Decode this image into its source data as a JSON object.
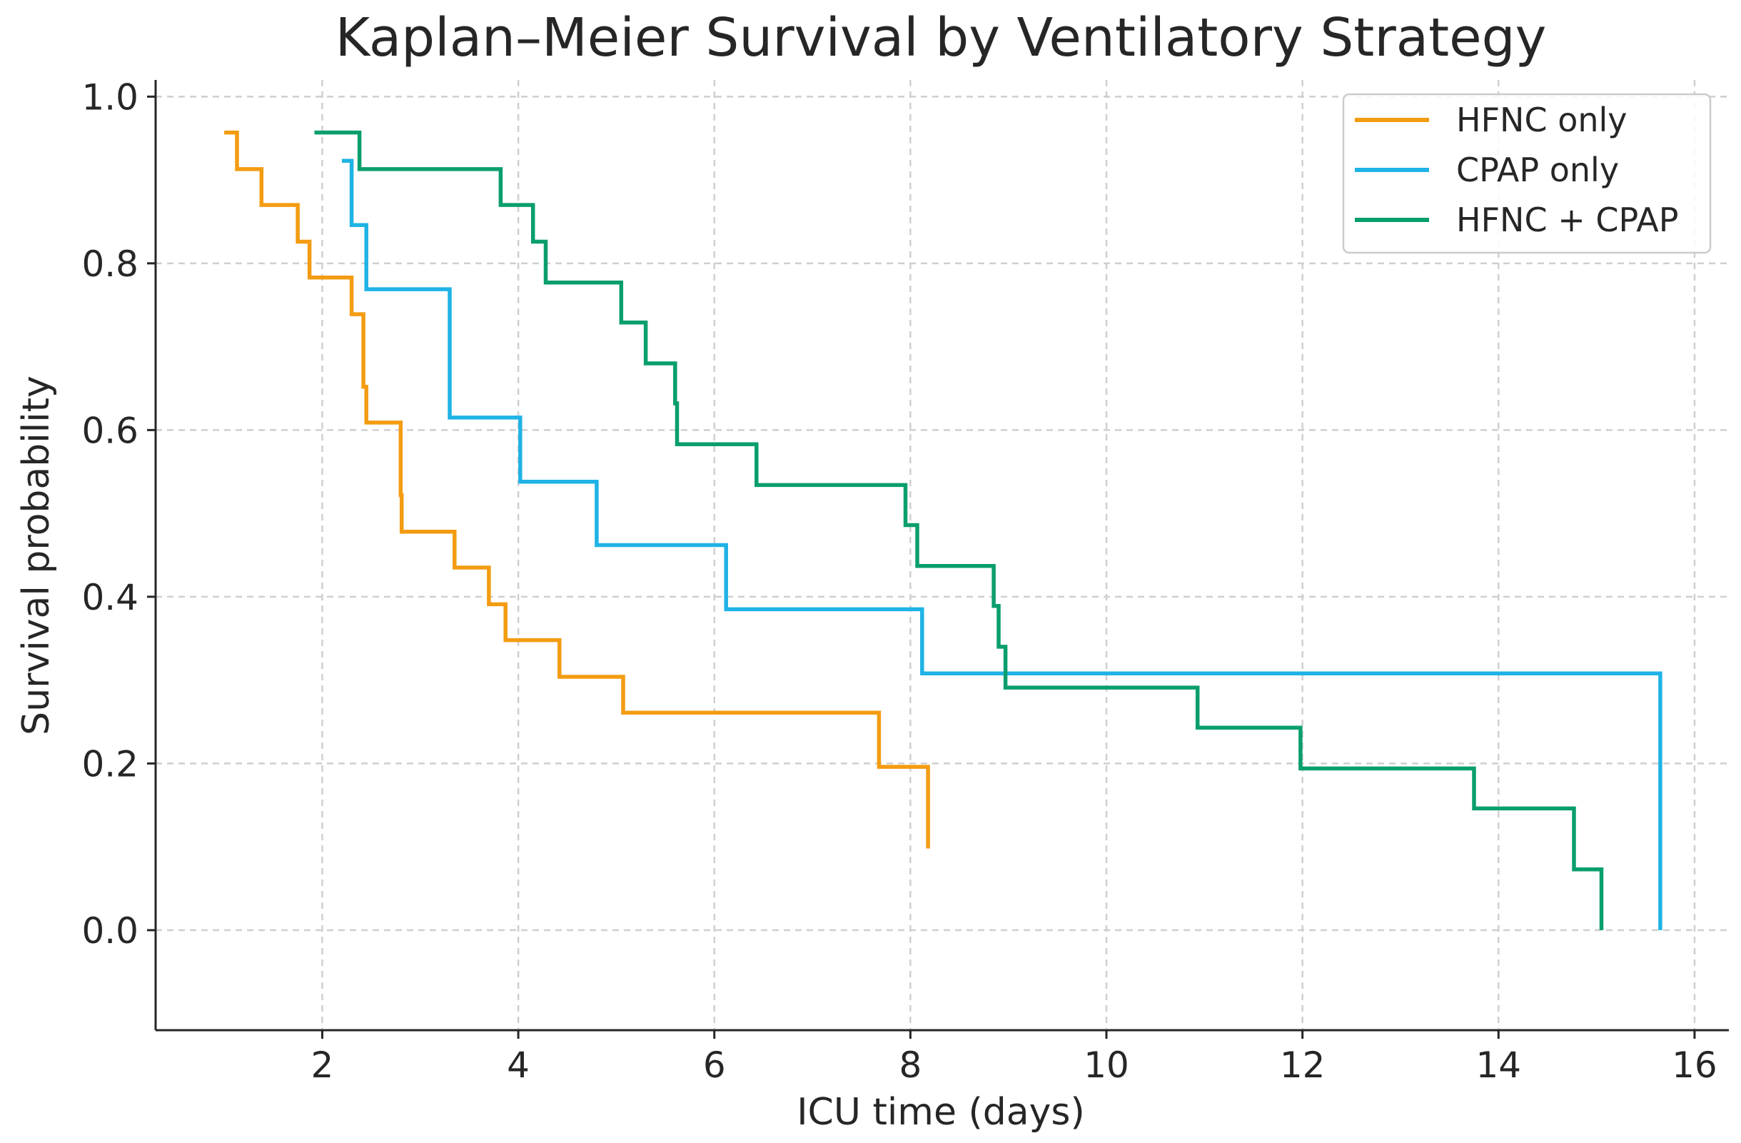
{
  "chart_data": {
    "type": "line",
    "step": true,
    "title": "Kaplan–Meier Survival by Ventilatory Strategy",
    "xlabel": "ICU time (days)",
    "ylabel": "Survival probability",
    "xlim": [
      0.3,
      16.35
    ],
    "ylim": [
      -0.12,
      1.02
    ],
    "xticks": [
      2,
      4,
      6,
      8,
      10,
      12,
      14,
      16
    ],
    "yticks": [
      0.0,
      0.2,
      0.4,
      0.6,
      0.8,
      1.0
    ],
    "ytick_labels": [
      "0.0",
      "0.2",
      "0.4",
      "0.6",
      "0.8",
      "1.0"
    ],
    "grid": true,
    "legend": "top-right",
    "series": [
      {
        "name": "HFNC only",
        "color": "#f39c12",
        "x": [
          1.0,
          1.13,
          1.38,
          1.75,
          1.87,
          2.3,
          2.42,
          2.45,
          2.8,
          2.81,
          3.35,
          3.7,
          3.87,
          4.42,
          5.07,
          7.68,
          8.18
        ],
        "y": [
          0.957,
          0.913,
          0.87,
          0.826,
          0.783,
          0.739,
          0.652,
          0.609,
          0.522,
          0.478,
          0.435,
          0.391,
          0.348,
          0.304,
          0.261,
          0.196,
          0.098
        ]
      },
      {
        "name": "CPAP only",
        "color": "#1fb3e5",
        "x": [
          2.2,
          2.3,
          2.45,
          3.3,
          4.02,
          4.8,
          6.12,
          8.12,
          15.65
        ],
        "y": [
          0.923,
          0.846,
          0.769,
          0.615,
          0.538,
          0.462,
          0.385,
          0.308,
          0.0
        ]
      },
      {
        "name": "HFNC + CPAP",
        "color": "#0a9e6e",
        "x": [
          1.92,
          2.38,
          3.82,
          4.15,
          4.28,
          5.05,
          5.3,
          5.6,
          5.62,
          6.43,
          7.95,
          8.07,
          8.85,
          8.9,
          8.97,
          10.93,
          11.98,
          13.75,
          14.77,
          15.05
        ],
        "y": [
          0.957,
          0.913,
          0.87,
          0.826,
          0.777,
          0.729,
          0.68,
          0.632,
          0.583,
          0.534,
          0.486,
          0.437,
          0.389,
          0.34,
          0.291,
          0.243,
          0.194,
          0.146,
          0.073,
          0.0
        ]
      }
    ]
  }
}
